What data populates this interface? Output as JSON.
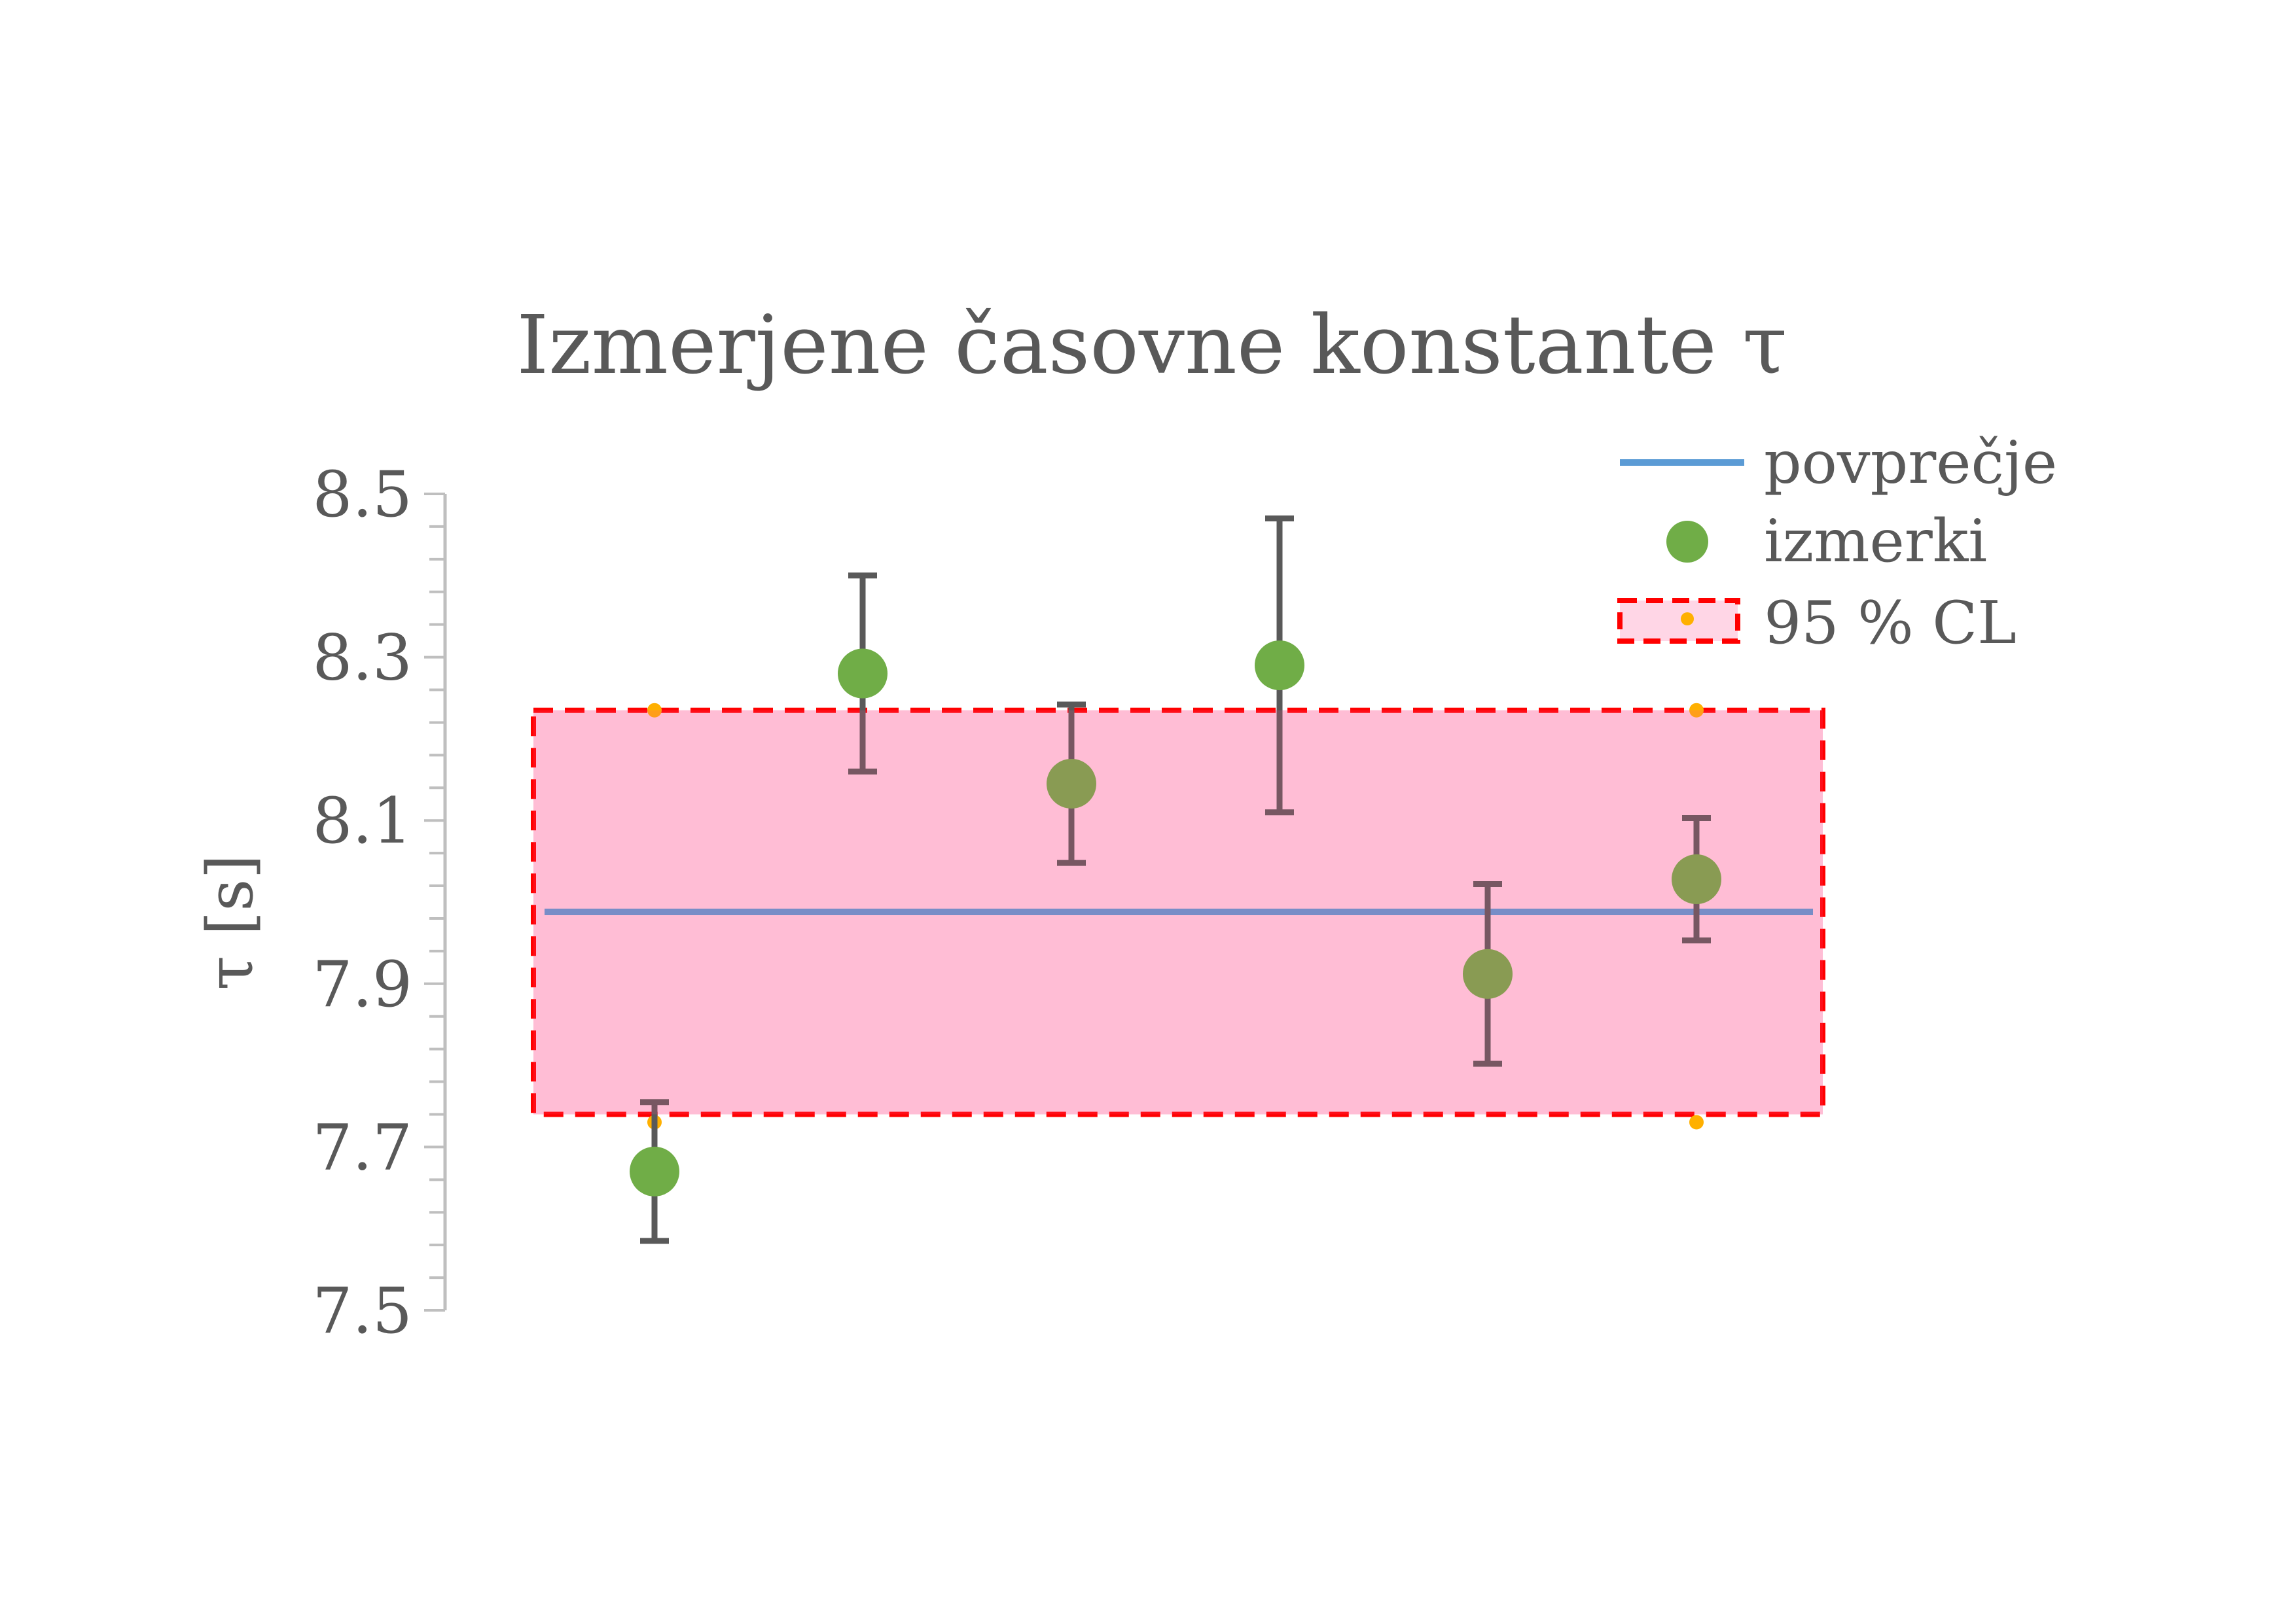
{
  "chart_data": {
    "type": "scatter",
    "title": "Izmerjene časovne konstante τ",
    "ylabel": "τ [s]",
    "xlabel": "",
    "ylim": [
      7.5,
      8.5
    ],
    "yticks": [
      "7.5",
      "7.7",
      "7.9",
      "8.1",
      "8.3",
      "8.5"
    ],
    "grid": false,
    "legend_position": "top-right",
    "series": [
      {
        "name": "povprečje",
        "kind": "line",
        "color": "#5b9bd5",
        "y": 7.988
      },
      {
        "name": "izmerki",
        "kind": "points",
        "color": "#70ad47",
        "errorbar_color": "#595959",
        "points": [
          {
            "y": 7.67,
            "err_low": 0.085,
            "err_high": 0.085
          },
          {
            "y": 8.28,
            "err_low": 0.12,
            "err_high": 0.12
          },
          {
            "y": 8.145,
            "err_low": 0.097,
            "err_high": 0.097
          },
          {
            "y": 8.29,
            "err_low": 0.18,
            "err_high": 0.18
          },
          {
            "y": 7.912,
            "err_low": 0.11,
            "err_high": 0.11
          },
          {
            "y": 8.028,
            "err_low": 0.075,
            "err_high": 0.075
          }
        ]
      },
      {
        "name": "95 % CL",
        "kind": "band",
        "fill": "#ffd6e6",
        "border": "#ff0000",
        "marker_color": "#ffb000",
        "y_low": 7.74,
        "y_high": 8.235
      }
    ]
  }
}
